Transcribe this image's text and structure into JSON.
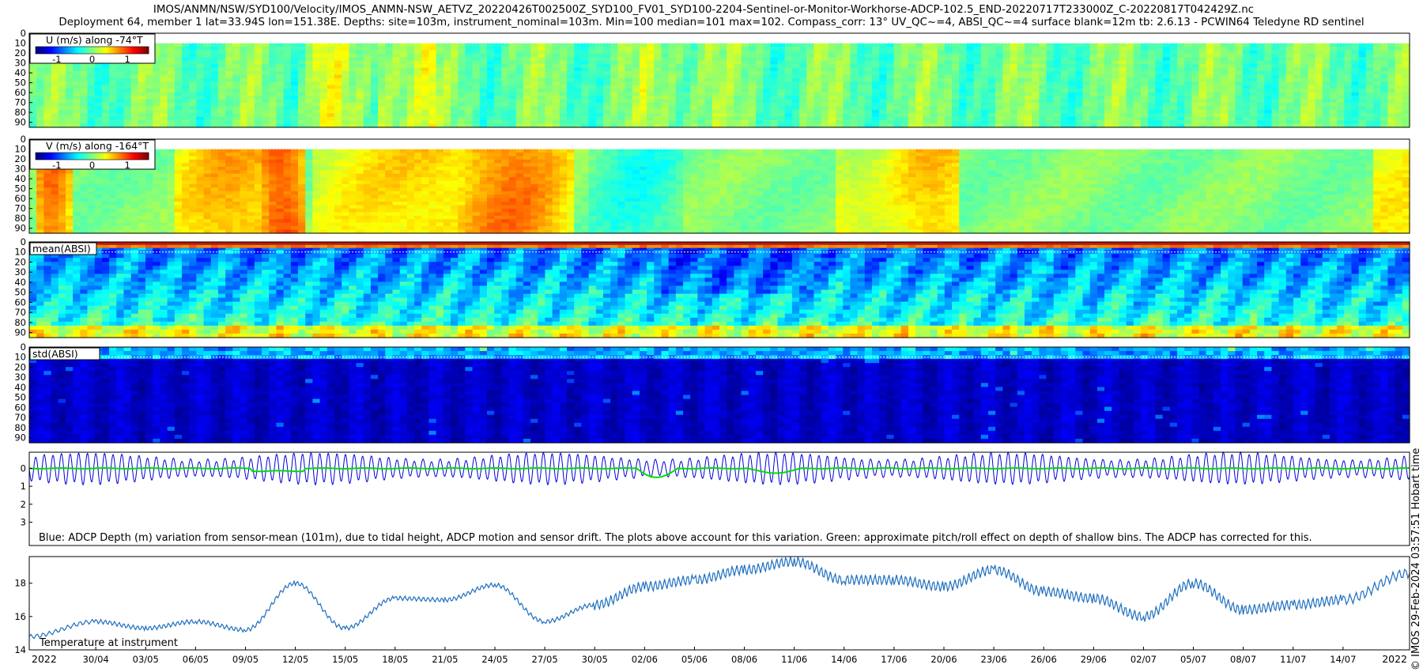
{
  "figure": {
    "title_line1": "IMOS/ANMN/NSW/SYD100/Velocity/IMOS_ANMN-NSW_AETVZ_20220426T002500Z_SYD100_FV01_SYD100-2204-Sentinel-or-Monitor-Workhorse-ADCP-102.5_END-20220717T233000Z_C-20220817T042429Z.nc",
    "title_line2": "Deployment 64, member 1 lat=33.94S lon=151.38E. Depths: site=103m, instrument_nominal=103m. Min=100 median=101 max=102. Compass_corr: 13° UV_QC~=4, ABSI_QC~=4 surface blank=12m tb: 2.6.13 - PCWIN64 Teledyne RD sentinel",
    "side_label": "© IMOS 29-Feb-2024 03:57:51 Hobart time"
  },
  "chart_data": [
    {
      "type": "heatmap",
      "id": "u",
      "label": "U (m/s) along -74°T",
      "yticks": [
        "0",
        "10",
        "20",
        "30",
        "40",
        "50",
        "60",
        "70",
        "80",
        "90"
      ],
      "ylim": [
        0,
        95
      ],
      "colorbar_ticks": [
        "-1",
        "0",
        "1"
      ],
      "colorbar_range": [
        -1.6,
        1.6
      ],
      "colormap": "jet",
      "blank_depth": 10,
      "time_range": [
        "2022-04-26",
        "2022-07-18"
      ],
      "approx_mean_profile_ms": 0.0
    },
    {
      "type": "heatmap",
      "id": "v",
      "label": "V (m/s) along -164°T",
      "yticks": [
        "0",
        "10",
        "20",
        "30",
        "40",
        "50",
        "60",
        "70",
        "80",
        "90"
      ],
      "ylim": [
        0,
        95
      ],
      "colorbar_ticks": [
        "-1",
        "0",
        "1"
      ],
      "colorbar_range": [
        -1.6,
        1.6
      ],
      "colormap": "jet",
      "blank_depth": 10,
      "time_range": [
        "2022-04-26",
        "2022-07-18"
      ]
    },
    {
      "type": "heatmap",
      "id": "mean_absi",
      "label": "mean(ABSI)",
      "yticks": [
        "0",
        "10",
        "20",
        "30",
        "40",
        "50",
        "60",
        "70",
        "80",
        "90"
      ],
      "ylim": [
        0,
        95
      ],
      "colormap": "jet",
      "time_range": [
        "2022-04-26",
        "2022-07-18"
      ]
    },
    {
      "type": "heatmap",
      "id": "std_absi",
      "label": "std(ABSI)",
      "yticks": [
        "0",
        "10",
        "20",
        "30",
        "40",
        "50",
        "60",
        "70",
        "80",
        "90"
      ],
      "ylim": [
        0,
        95
      ],
      "colormap": "jet",
      "time_range": [
        "2022-04-26",
        "2022-07-18"
      ]
    },
    {
      "type": "line",
      "id": "depth_variation",
      "caption": "Blue: ADCP Depth (m) variation from sensor-mean (101m), due to tidal height, ADCP motion and sensor drift. The plots above account for this variation. Green: approximate pitch/roll effect on depth of shallow bins. The ADCP has corrected for this.",
      "yticks": [
        "0",
        "1",
        "2",
        "3"
      ],
      "ylim": [
        -0.9,
        4.3
      ],
      "y_reversed": true,
      "series": [
        {
          "color": "#0000dd",
          "tidal_amplitude_m": 0.8,
          "tidal_period_h": 12.42
        },
        {
          "color": "#00dd00",
          "baseline_m": 0.0
        }
      ],
      "time_range": [
        "2022-04-26",
        "2022-07-18"
      ]
    },
    {
      "type": "line",
      "id": "temperature",
      "label": "Temperature at instrument",
      "yticks": [
        "14",
        "16",
        "18"
      ],
      "ylim": [
        14,
        19.6
      ],
      "color": "#1f6fbf",
      "x": [
        "2022-04-26",
        "2022-04-30",
        "2022-05-03",
        "2022-05-06",
        "2022-05-09",
        "2022-05-12",
        "2022-05-15",
        "2022-05-18",
        "2022-05-21",
        "2022-05-24",
        "2022-05-27",
        "2022-05-30",
        "2022-06-02",
        "2022-06-05",
        "2022-06-08",
        "2022-06-11",
        "2022-06-14",
        "2022-06-17",
        "2022-06-20",
        "2022-06-23",
        "2022-06-26",
        "2022-06-29",
        "2022-07-02",
        "2022-07-05",
        "2022-07-08",
        "2022-07-11",
        "2022-07-14",
        "2022-07-18"
      ],
      "values": [
        14.8,
        15.7,
        15.3,
        15.7,
        15.2,
        18.0,
        15.3,
        17.1,
        17.0,
        17.9,
        15.7,
        16.7,
        17.8,
        18.2,
        18.8,
        19.3,
        18.2,
        18.2,
        17.8,
        18.8,
        17.5,
        17.1,
        16.0,
        18.0,
        16.4,
        16.7,
        17.0,
        18.6
      ],
      "time_range": [
        "2022-04-26",
        "2022-07-18"
      ]
    }
  ],
  "x_axis": {
    "start_label": "2022",
    "end_label": "2022",
    "ticks": [
      "30/04",
      "03/05",
      "06/05",
      "09/05",
      "12/05",
      "15/05",
      "18/05",
      "21/05",
      "24/05",
      "27/05",
      "30/05",
      "02/06",
      "05/06",
      "08/06",
      "11/06",
      "14/06",
      "17/06",
      "20/06",
      "23/06",
      "26/06",
      "29/06",
      "02/07",
      "05/07",
      "08/07",
      "11/07",
      "14/07"
    ]
  }
}
